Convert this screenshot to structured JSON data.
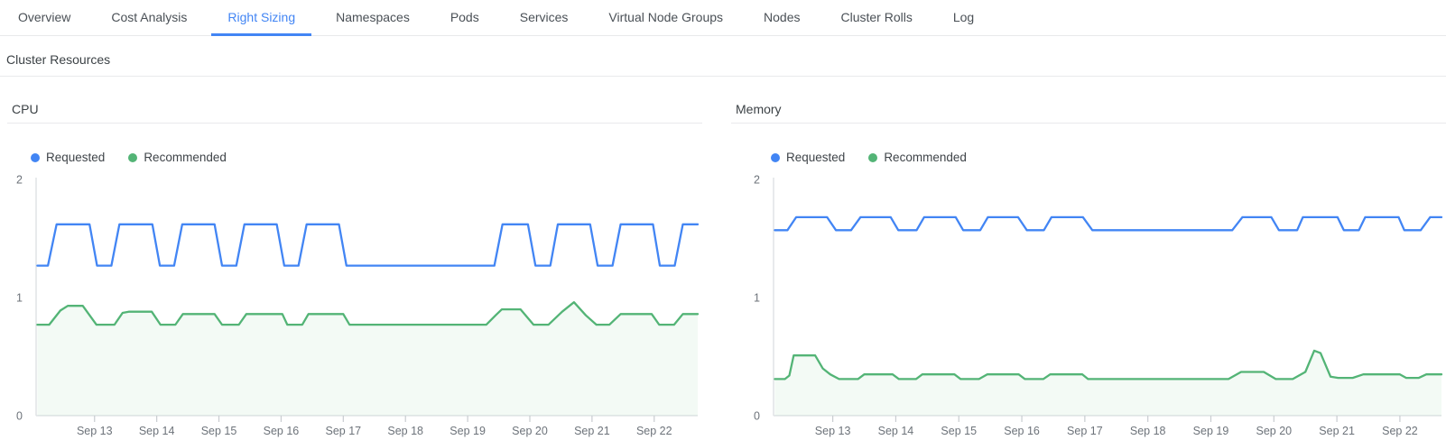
{
  "tabs": {
    "items": [
      {
        "label": "Overview",
        "active": false
      },
      {
        "label": "Cost Analysis",
        "active": false
      },
      {
        "label": "Right Sizing",
        "active": true
      },
      {
        "label": "Namespaces",
        "active": false
      },
      {
        "label": "Pods",
        "active": false
      },
      {
        "label": "Services",
        "active": false
      },
      {
        "label": "Virtual Node Groups",
        "active": false
      },
      {
        "label": "Nodes",
        "active": false
      },
      {
        "label": "Cluster Rolls",
        "active": false
      },
      {
        "label": "Log",
        "active": false
      }
    ]
  },
  "section": {
    "title": "Cluster Resources"
  },
  "colors": {
    "accent": "#4285F4",
    "tab_text": "#4a5056",
    "requested": "#4285F4",
    "recommended": "#53B476",
    "recommended_fill": "rgba(83,180,118,0.07)",
    "axis_line": "#dcdfe2",
    "tick_line": "#c8ccd0",
    "axis_label": "#6d737a"
  },
  "chart_data": {
    "type": "line",
    "x_unit": "day of September",
    "charts": [
      {
        "title": "CPU",
        "ylim": [
          0,
          2
        ],
        "y_ticks": [
          0,
          1,
          2
        ],
        "xlim": [
          12.06,
          22.7
        ],
        "x_ticks": [
          {
            "day": 13,
            "label": "Sep 13"
          },
          {
            "day": 14,
            "label": "Sep 14"
          },
          {
            "day": 15,
            "label": "Sep 15"
          },
          {
            "day": 16,
            "label": "Sep 16"
          },
          {
            "day": 17,
            "label": "Sep 17"
          },
          {
            "day": 18,
            "label": "Sep 18"
          },
          {
            "day": 19,
            "label": "Sep 19"
          },
          {
            "day": 20,
            "label": "Sep 20"
          },
          {
            "day": 21,
            "label": "Sep 21"
          },
          {
            "day": 22,
            "label": "Sep 22"
          }
        ],
        "series": [
          {
            "name": "Recommended",
            "color": "#53B476",
            "fill": true,
            "points": [
              [
                12.08,
                0.77
              ],
              [
                12.27,
                0.77
              ],
              [
                12.45,
                0.89
              ],
              [
                12.57,
                0.93
              ],
              [
                12.81,
                0.93
              ],
              [
                13.03,
                0.77
              ],
              [
                13.32,
                0.77
              ],
              [
                13.45,
                0.87
              ],
              [
                13.55,
                0.88
              ],
              [
                13.92,
                0.88
              ],
              [
                14.06,
                0.77
              ],
              [
                14.3,
                0.77
              ],
              [
                14.42,
                0.86
              ],
              [
                14.93,
                0.86
              ],
              [
                15.05,
                0.77
              ],
              [
                15.32,
                0.77
              ],
              [
                15.44,
                0.86
              ],
              [
                16.02,
                0.86
              ],
              [
                16.1,
                0.77
              ],
              [
                16.34,
                0.77
              ],
              [
                16.44,
                0.86
              ],
              [
                17.0,
                0.86
              ],
              [
                17.1,
                0.77
              ],
              [
                19.3,
                0.77
              ],
              [
                19.45,
                0.85
              ],
              [
                19.55,
                0.9
              ],
              [
                19.85,
                0.9
              ],
              [
                20.06,
                0.77
              ],
              [
                20.3,
                0.77
              ],
              [
                20.52,
                0.88
              ],
              [
                20.71,
                0.96
              ],
              [
                20.9,
                0.85
              ],
              [
                21.07,
                0.77
              ],
              [
                21.28,
                0.77
              ],
              [
                21.46,
                0.86
              ],
              [
                21.96,
                0.86
              ],
              [
                22.08,
                0.77
              ],
              [
                22.32,
                0.77
              ],
              [
                22.46,
                0.86
              ],
              [
                22.7,
                0.86
              ]
            ]
          },
          {
            "name": "Requested",
            "color": "#4285F4",
            "fill": false,
            "points": [
              [
                12.08,
                1.27
              ],
              [
                12.25,
                1.27
              ],
              [
                12.39,
                1.62
              ],
              [
                12.92,
                1.62
              ],
              [
                13.04,
                1.27
              ],
              [
                13.27,
                1.27
              ],
              [
                13.4,
                1.62
              ],
              [
                13.93,
                1.62
              ],
              [
                14.05,
                1.27
              ],
              [
                14.28,
                1.27
              ],
              [
                14.41,
                1.62
              ],
              [
                14.93,
                1.62
              ],
              [
                15.05,
                1.27
              ],
              [
                15.28,
                1.27
              ],
              [
                15.41,
                1.62
              ],
              [
                15.93,
                1.62
              ],
              [
                16.05,
                1.27
              ],
              [
                16.28,
                1.27
              ],
              [
                16.41,
                1.62
              ],
              [
                16.93,
                1.62
              ],
              [
                17.05,
                1.27
              ],
              [
                19.43,
                1.27
              ],
              [
                19.56,
                1.62
              ],
              [
                19.97,
                1.62
              ],
              [
                20.09,
                1.27
              ],
              [
                20.33,
                1.27
              ],
              [
                20.45,
                1.62
              ],
              [
                20.97,
                1.62
              ],
              [
                21.09,
                1.27
              ],
              [
                21.33,
                1.27
              ],
              [
                21.46,
                1.62
              ],
              [
                21.98,
                1.62
              ],
              [
                22.09,
                1.27
              ],
              [
                22.33,
                1.27
              ],
              [
                22.46,
                1.62
              ],
              [
                22.7,
                1.62
              ]
            ]
          }
        ],
        "legend": [
          "Requested",
          "Recommended"
        ]
      },
      {
        "title": "Memory",
        "ylim": [
          0,
          2
        ],
        "y_ticks": [
          0,
          1,
          2
        ],
        "xlim": [
          12.06,
          22.66
        ],
        "x_ticks": [
          {
            "day": 13,
            "label": "Sep 13"
          },
          {
            "day": 14,
            "label": "Sep 14"
          },
          {
            "day": 15,
            "label": "Sep 15"
          },
          {
            "day": 16,
            "label": "Sep 16"
          },
          {
            "day": 17,
            "label": "Sep 17"
          },
          {
            "day": 18,
            "label": "Sep 18"
          },
          {
            "day": 19,
            "label": "Sep 19"
          },
          {
            "day": 20,
            "label": "Sep 20"
          },
          {
            "day": 21,
            "label": "Sep 21"
          },
          {
            "day": 22,
            "label": "Sep 22"
          }
        ],
        "series": [
          {
            "name": "Recommended",
            "color": "#53B476",
            "fill": true,
            "points": [
              [
                12.08,
                0.31
              ],
              [
                12.24,
                0.31
              ],
              [
                12.31,
                0.34
              ],
              [
                12.38,
                0.51
              ],
              [
                12.72,
                0.51
              ],
              [
                12.84,
                0.4
              ],
              [
                12.96,
                0.35
              ],
              [
                13.1,
                0.31
              ],
              [
                13.4,
                0.31
              ],
              [
                13.5,
                0.35
              ],
              [
                13.95,
                0.35
              ],
              [
                14.05,
                0.31
              ],
              [
                14.32,
                0.31
              ],
              [
                14.42,
                0.35
              ],
              [
                14.93,
                0.35
              ],
              [
                15.03,
                0.31
              ],
              [
                15.32,
                0.31
              ],
              [
                15.45,
                0.35
              ],
              [
                15.95,
                0.35
              ],
              [
                16.05,
                0.31
              ],
              [
                16.34,
                0.31
              ],
              [
                16.45,
                0.35
              ],
              [
                16.96,
                0.35
              ],
              [
                17.05,
                0.31
              ],
              [
                19.28,
                0.31
              ],
              [
                19.48,
                0.37
              ],
              [
                19.84,
                0.37
              ],
              [
                20.03,
                0.31
              ],
              [
                20.3,
                0.31
              ],
              [
                20.5,
                0.37
              ],
              [
                20.64,
                0.55
              ],
              [
                20.74,
                0.53
              ],
              [
                20.9,
                0.33
              ],
              [
                21.02,
                0.32
              ],
              [
                21.25,
                0.32
              ],
              [
                21.42,
                0.35
              ],
              [
                22.0,
                0.35
              ],
              [
                22.1,
                0.32
              ],
              [
                22.3,
                0.32
              ],
              [
                22.42,
                0.35
              ],
              [
                22.66,
                0.35
              ]
            ]
          },
          {
            "name": "Requested",
            "color": "#4285F4",
            "fill": false,
            "points": [
              [
                12.08,
                1.57
              ],
              [
                12.28,
                1.57
              ],
              [
                12.42,
                1.68
              ],
              [
                12.91,
                1.68
              ],
              [
                13.05,
                1.57
              ],
              [
                13.29,
                1.57
              ],
              [
                13.44,
                1.68
              ],
              [
                13.92,
                1.68
              ],
              [
                14.04,
                1.57
              ],
              [
                14.33,
                1.57
              ],
              [
                14.45,
                1.68
              ],
              [
                14.95,
                1.68
              ],
              [
                15.07,
                1.57
              ],
              [
                15.34,
                1.57
              ],
              [
                15.46,
                1.68
              ],
              [
                15.94,
                1.68
              ],
              [
                16.08,
                1.57
              ],
              [
                16.35,
                1.57
              ],
              [
                16.47,
                1.68
              ],
              [
                16.97,
                1.68
              ],
              [
                17.12,
                1.57
              ],
              [
                19.34,
                1.57
              ],
              [
                19.5,
                1.68
              ],
              [
                19.96,
                1.68
              ],
              [
                20.08,
                1.57
              ],
              [
                20.37,
                1.57
              ],
              [
                20.46,
                1.68
              ],
              [
                21.01,
                1.68
              ],
              [
                21.11,
                1.57
              ],
              [
                21.35,
                1.57
              ],
              [
                21.45,
                1.68
              ],
              [
                21.98,
                1.68
              ],
              [
                22.07,
                1.57
              ],
              [
                22.33,
                1.57
              ],
              [
                22.48,
                1.68
              ],
              [
                22.66,
                1.68
              ]
            ]
          }
        ],
        "legend": [
          "Requested",
          "Recommended"
        ]
      }
    ]
  }
}
